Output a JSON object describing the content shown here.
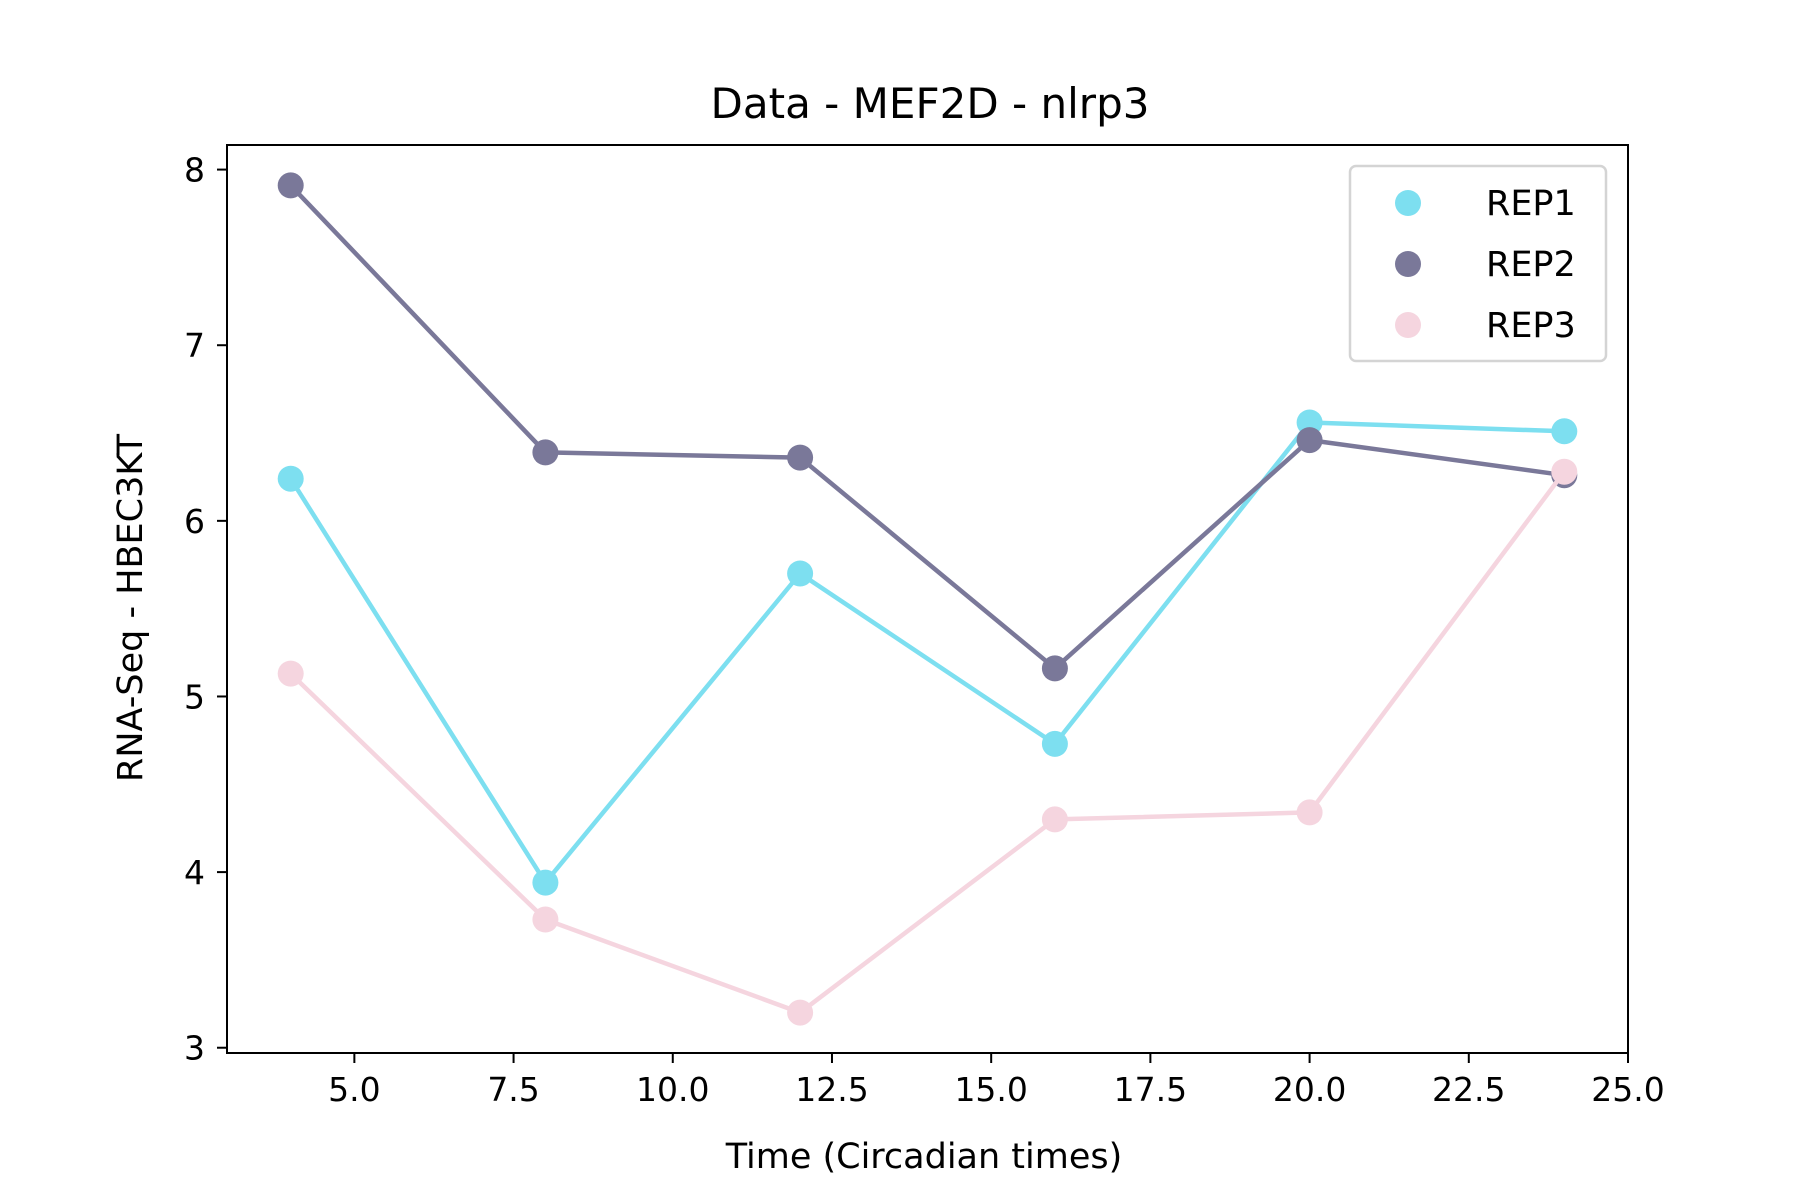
{
  "chart_data": {
    "type": "line",
    "title": "Data - MEF2D - nlrp3",
    "xlabel": "Time (Circadian times)",
    "ylabel": "RNA-Seq - HBEC3KT",
    "x": [
      4,
      8,
      12,
      16,
      20,
      24
    ],
    "xlim": [
      3,
      25
    ],
    "ylim": [
      2.97,
      8.14
    ],
    "xticks": [
      5.0,
      7.5,
      10.0,
      12.5,
      15.0,
      17.5,
      20.0,
      22.5,
      25.0
    ],
    "xtick_labels": [
      "5.0",
      "7.5",
      "10.0",
      "12.5",
      "15.0",
      "17.5",
      "20.0",
      "22.5",
      "25.0"
    ],
    "yticks": [
      3,
      4,
      5,
      6,
      7,
      8
    ],
    "ytick_labels": [
      "3",
      "4",
      "5",
      "6",
      "7",
      "8"
    ],
    "grid": false,
    "legend_position": "top-right",
    "series": [
      {
        "name": "REP1",
        "color": "#7ddff0",
        "values": [
          6.24,
          3.94,
          5.7,
          4.73,
          6.56,
          6.51
        ]
      },
      {
        "name": "REP2",
        "color": "#7a7899",
        "values": [
          7.91,
          6.39,
          6.36,
          5.16,
          6.46,
          6.26
        ]
      },
      {
        "name": "REP3",
        "color": "#f5d5df",
        "values": [
          5.13,
          3.73,
          3.2,
          4.3,
          4.34,
          6.28
        ]
      }
    ]
  }
}
